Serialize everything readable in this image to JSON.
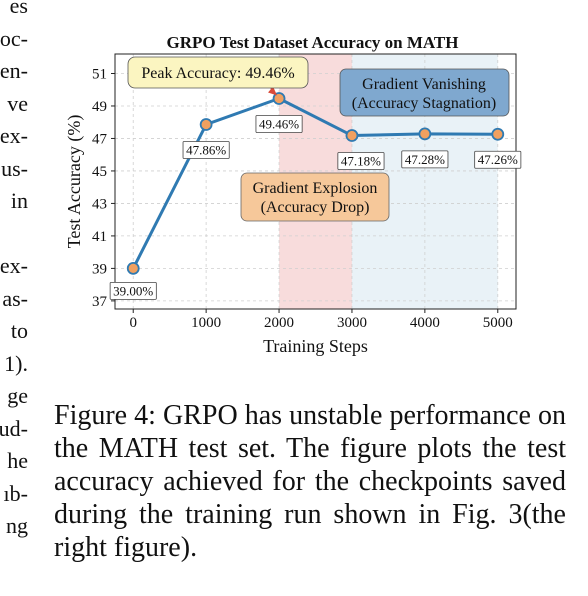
{
  "left_column_fragments": [
    "es",
    "oc-",
    "en-",
    "ve",
    "ex-",
    "us-",
    "in",
    "",
    "ex-",
    "as-",
    "to",
    "1).",
    "ge",
    "ud-",
    "he",
    "ıb-",
    "ng"
  ],
  "chart_data": {
    "type": "line",
    "title": "GRPO Test Dataset Accuracy on MATH",
    "xlabel": "Training Steps",
    "ylabel": "Test Accuracy (%)",
    "x": [
      0,
      1000,
      2000,
      3000,
      4000,
      5000
    ],
    "values": [
      39.0,
      47.86,
      49.46,
      47.18,
      47.28,
      47.26
    ],
    "data_labels": [
      "39.00%",
      "47.86%",
      "49.46%",
      "47.18%",
      "47.28%",
      "47.26%"
    ],
    "xlim": [
      -250,
      5250
    ],
    "ylim": [
      36.5,
      52.2
    ],
    "xticks": [
      0,
      1000,
      2000,
      3000,
      4000,
      5000
    ],
    "yticks": [
      37,
      39,
      41,
      43,
      45,
      47,
      49,
      51
    ],
    "grid": true,
    "line_color": "#2f7ab2",
    "marker_color": "#f0a060",
    "regions": [
      {
        "from": 2000,
        "to": 3000,
        "color": "#f6d3d3"
      },
      {
        "from": 3000,
        "to": 5000,
        "color": "#e3eff5"
      }
    ],
    "annotations": [
      {
        "text": "Peak Accuracy: 49.46%",
        "color": "#fbf5c1"
      },
      {
        "text_lines": [
          "Gradient Explosion",
          "(Accuracy Drop)"
        ],
        "color": "#f6c89a"
      },
      {
        "text_lines": [
          "Gradient Vanishing",
          "(Accuracy Stagnation)"
        ],
        "color": "#7fa8cf"
      }
    ]
  },
  "caption": "Figure 4: GRPO has unstable performance on the MATH test set. The figure plots the test accuracy achieved for the checkpoints saved during the training run shown in Fig. 3(the right figure)."
}
